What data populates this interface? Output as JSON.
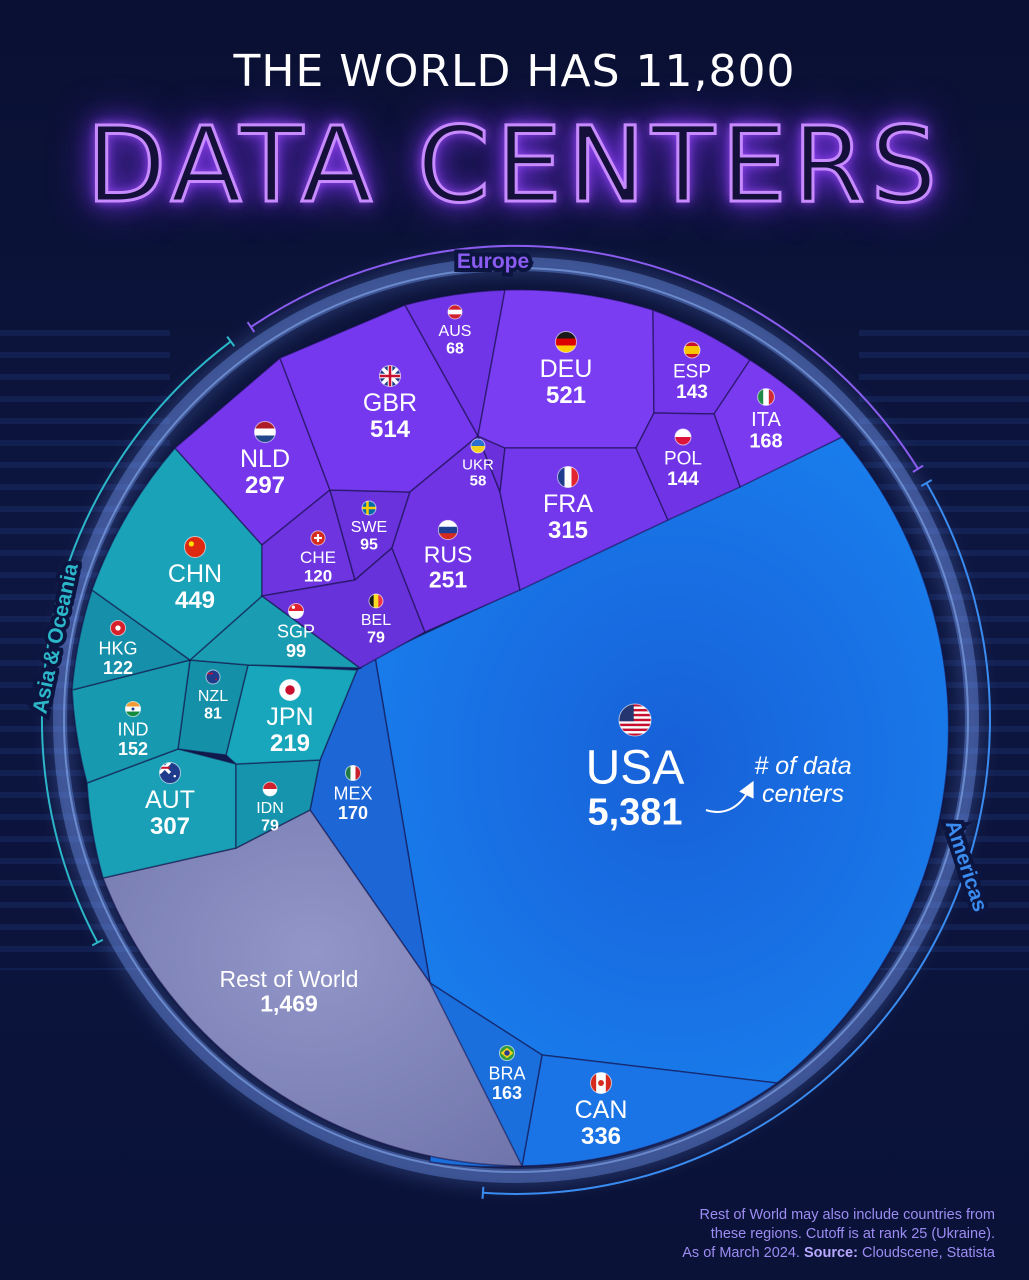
{
  "header": {
    "title_top": "THE WORLD HAS 11,800",
    "title_main": "DATA CENTERS"
  },
  "footnote": {
    "line1": "Rest of World may also include countries from",
    "line2": "these regions. Cutoff is at rank 25 (Ukraine).",
    "line3_prefix": "As of March 2024.",
    "source_label": "Source:",
    "source_text": "Cloudscene, Statista"
  },
  "annotation": {
    "line1": "# of data",
    "line2": "centers"
  },
  "colors": {
    "europe": "#7a3cf2",
    "asia_oceania": "#17a3b8",
    "americas": "#1f72e6",
    "rest_of_world": "#8a8fc0",
    "europe_label": "#8a5cf0",
    "asia_label": "#2bb7c9",
    "americas_label": "#3a8cf0"
  },
  "chart_data": {
    "type": "voronoi-treemap",
    "title": "THE WORLD HAS 11,800 DATA CENTERS",
    "total": 11800,
    "regions": [
      {
        "name": "Europe",
        "color": "#7a3cf2",
        "countries": [
          {
            "code": "DEU",
            "value": 521,
            "display": "521",
            "flag": "germany-flag-icon"
          },
          {
            "code": "GBR",
            "value": 514,
            "display": "514",
            "flag": "united-kingdom-flag-icon"
          },
          {
            "code": "FRA",
            "value": 315,
            "display": "315",
            "flag": "france-flag-icon"
          },
          {
            "code": "NLD",
            "value": 297,
            "display": "297",
            "flag": "netherlands-flag-icon"
          },
          {
            "code": "RUS",
            "value": 251,
            "display": "251",
            "flag": "russia-flag-icon"
          },
          {
            "code": "ITA",
            "value": 168,
            "display": "168",
            "flag": "italy-flag-icon"
          },
          {
            "code": "POL",
            "value": 144,
            "display": "144",
            "flag": "poland-flag-icon"
          },
          {
            "code": "ESP",
            "value": 143,
            "display": "143",
            "flag": "spain-flag-icon"
          },
          {
            "code": "CHE",
            "value": 120,
            "display": "120",
            "flag": "switzerland-flag-icon"
          },
          {
            "code": "SWE",
            "value": 95,
            "display": "95",
            "flag": "sweden-flag-icon"
          },
          {
            "code": "BEL",
            "value": 79,
            "display": "79",
            "flag": "belgium-flag-icon"
          },
          {
            "code": "AUS",
            "value": 68,
            "display": "68",
            "flag": "austria-flag-icon"
          },
          {
            "code": "UKR",
            "value": 58,
            "display": "58",
            "flag": "ukraine-flag-icon"
          }
        ]
      },
      {
        "name": "Asia & Oceania",
        "color": "#17a3b8",
        "countries": [
          {
            "code": "CHN",
            "value": 449,
            "display": "449",
            "flag": "china-flag-icon"
          },
          {
            "code": "AUT",
            "value": 307,
            "display": "307",
            "flag": "australia-flag-icon"
          },
          {
            "code": "JPN",
            "value": 219,
            "display": "219",
            "flag": "japan-flag-icon"
          },
          {
            "code": "IND",
            "value": 152,
            "display": "152",
            "flag": "india-flag-icon"
          },
          {
            "code": "HKG",
            "value": 122,
            "display": "122",
            "flag": "hong-kong-flag-icon"
          },
          {
            "code": "SGP",
            "value": 99,
            "display": "99",
            "flag": "singapore-flag-icon"
          },
          {
            "code": "NZL",
            "value": 81,
            "display": "81",
            "flag": "new-zealand-flag-icon"
          },
          {
            "code": "IDN",
            "value": 79,
            "display": "79",
            "flag": "indonesia-flag-icon"
          }
        ]
      },
      {
        "name": "Americas",
        "color": "#1f72e6",
        "countries": [
          {
            "code": "USA",
            "value": 5381,
            "display": "5,381",
            "flag": "usa-flag-icon"
          },
          {
            "code": "CAN",
            "value": 336,
            "display": "336",
            "flag": "canada-flag-icon"
          },
          {
            "code": "MEX",
            "value": 170,
            "display": "170",
            "flag": "mexico-flag-icon"
          },
          {
            "code": "BRA",
            "value": 163,
            "display": "163",
            "flag": "brazil-flag-icon"
          }
        ]
      },
      {
        "name": "Rest of World",
        "color": "#8a8fc0",
        "countries": [
          {
            "code": "Rest of World",
            "value": 1469,
            "display": "1,469"
          }
        ]
      }
    ]
  }
}
